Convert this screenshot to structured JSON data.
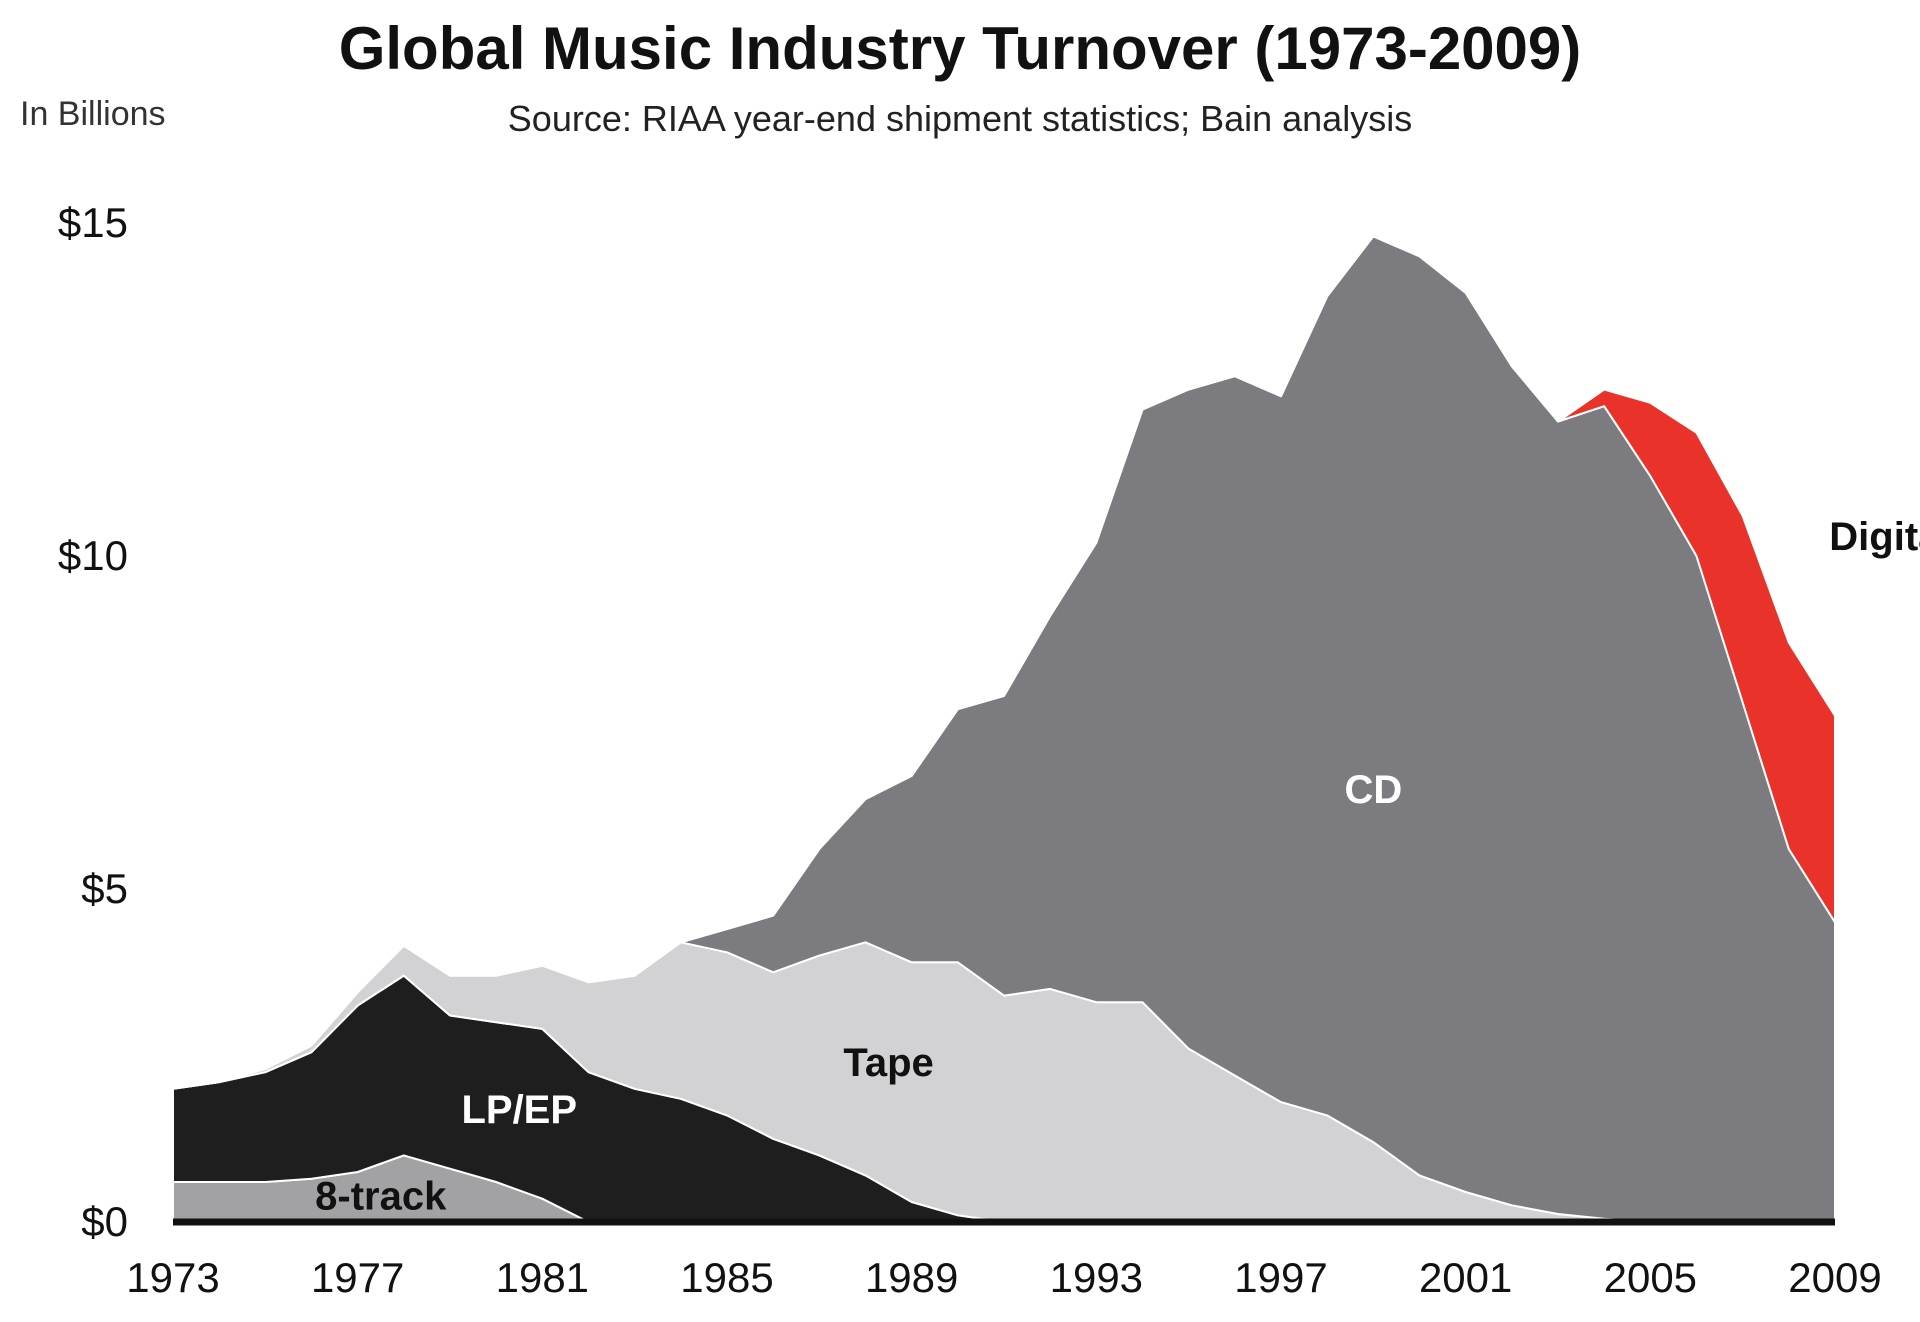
{
  "chart_data": {
    "type": "area",
    "title": "Global Music Industry Turnover (1973-2009)",
    "subtitle": "Source: RIAA year-end shipment statistics; Bain analysis",
    "ylabel": "In Billions",
    "xlabel": "",
    "xlim": [
      1973,
      2009
    ],
    "ylim": [
      0,
      15.5
    ],
    "yticks": [
      {
        "value": 0,
        "label": "$0"
      },
      {
        "value": 5,
        "label": "$5"
      },
      {
        "value": 10,
        "label": "$10"
      },
      {
        "value": 15,
        "label": "$15"
      }
    ],
    "xticks": [
      "1973",
      "1977",
      "1981",
      "1985",
      "1989",
      "1993",
      "1997",
      "2001",
      "2005",
      "2009"
    ],
    "stacking": "stacked",
    "series": [
      {
        "name": "8-track",
        "color": "#a2a2a4",
        "x": [
          1973,
          1974,
          1975,
          1976,
          1977,
          1978,
          1979,
          1980,
          1981,
          1982,
          1983,
          2009
        ],
        "values": [
          0.6,
          0.6,
          0.6,
          0.65,
          0.75,
          1.0,
          0.8,
          0.6,
          0.35,
          0.0,
          0.0,
          0.0
        ]
      },
      {
        "name": "LP/EP",
        "color": "#1e1e1e",
        "x": [
          1973,
          1974,
          1975,
          1976,
          1977,
          1978,
          1979,
          1980,
          1981,
          1982,
          1983,
          1984,
          1985,
          1986,
          1987,
          1988,
          1989,
          1990,
          1991,
          2009
        ],
        "values": [
          1.4,
          1.5,
          1.65,
          1.9,
          2.5,
          2.7,
          2.3,
          2.4,
          2.55,
          2.25,
          2.0,
          1.85,
          1.6,
          1.25,
          1.0,
          0.7,
          0.3,
          0.1,
          0.0,
          0.0
        ]
      },
      {
        "name": "Tape",
        "color": "#d2d2d4",
        "x": [
          1973,
          1974,
          1975,
          1976,
          1977,
          1978,
          1979,
          1980,
          1981,
          1982,
          1983,
          1984,
          1985,
          1986,
          1987,
          1988,
          1989,
          1990,
          1991,
          1992,
          1993,
          1994,
          1995,
          1996,
          1997,
          1998,
          1999,
          2000,
          2001,
          2002,
          2003,
          2004,
          2005,
          2009
        ],
        "values": [
          0.0,
          0.0,
          0.05,
          0.1,
          0.2,
          0.45,
          0.6,
          0.7,
          0.95,
          1.35,
          1.7,
          2.35,
          2.45,
          2.5,
          3.0,
          3.5,
          3.6,
          3.8,
          3.4,
          3.5,
          3.3,
          3.3,
          2.6,
          2.2,
          1.8,
          1.6,
          1.2,
          0.7,
          0.45,
          0.25,
          0.12,
          0.05,
          0.0,
          0.0
        ]
      },
      {
        "name": "CD",
        "color": "#7c7c80",
        "x": [
          1973,
          1983,
          1984,
          1985,
          1986,
          1987,
          1988,
          1989,
          1990,
          1991,
          1992,
          1993,
          1994,
          1995,
          1996,
          1997,
          1998,
          1999,
          2000,
          2001,
          2002,
          2003,
          2004,
          2005,
          2006,
          2007,
          2008,
          2009
        ],
        "values": [
          0.0,
          0.0,
          0.0,
          0.35,
          0.85,
          1.6,
          2.15,
          2.8,
          3.8,
          4.5,
          5.6,
          6.9,
          8.9,
          9.9,
          10.5,
          10.6,
          12.3,
          13.6,
          13.8,
          13.5,
          12.6,
          11.9,
          12.2,
          11.2,
          10.0,
          7.8,
          5.6,
          4.5
        ]
      },
      {
        "name": "Digital",
        "color": "#e8322a",
        "x": [
          1973,
          2003,
          2004,
          2005,
          2006,
          2007,
          2008,
          2009
        ],
        "values": [
          0.0,
          0.0,
          0.25,
          1.1,
          1.85,
          2.8,
          3.1,
          3.1
        ]
      }
    ],
    "labels": [
      {
        "text": "CD",
        "x": 1999.0,
        "y": 6.5,
        "color": "#ffffff"
      },
      {
        "text": "Tape",
        "x": 1988.5,
        "y": 2.4,
        "color": "#111111"
      },
      {
        "text": "LP/EP",
        "x": 1980.5,
        "y": 1.7,
        "color": "#ffffff"
      },
      {
        "text": "8-track",
        "x": 1977.5,
        "y": 0.4,
        "color": "#111111"
      },
      {
        "text": "Digital",
        "x": 2010.2,
        "y": 10.3,
        "color": "#111111"
      }
    ],
    "grid": false,
    "legend": "none"
  }
}
